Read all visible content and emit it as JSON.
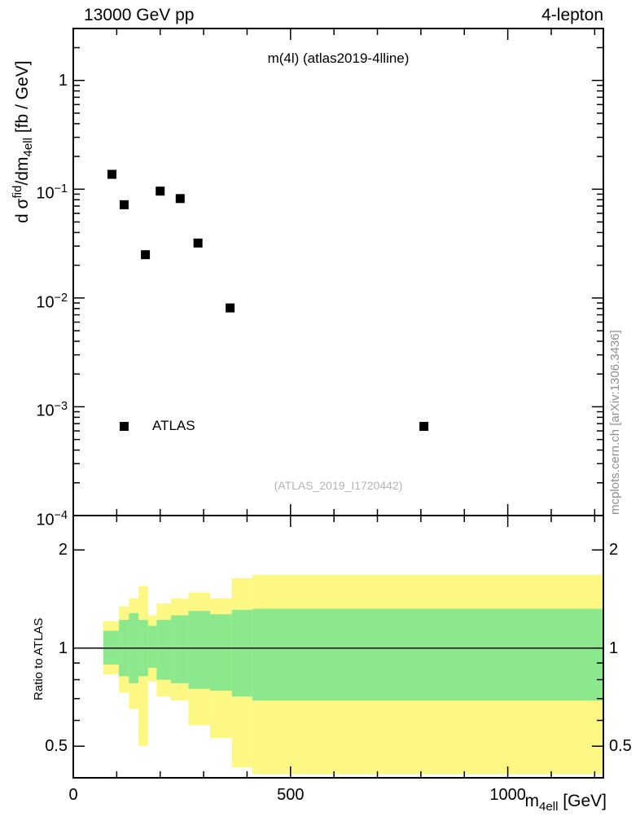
{
  "header": {
    "left": "13000 GeV pp",
    "right": "4-lepton"
  },
  "side_note": "mcplots.cern.ch [arXiv:1306.3436]",
  "axes": {
    "y_main_label": {
      "pre": "d σ",
      "sup": "fid",
      "mid": "/dm",
      "sub": "4ell",
      "post": " [fb / GeV]"
    },
    "y_ratio_label": "Ratio to ATLAS",
    "x_label": {
      "pre": "m",
      "sub": "4ell",
      "post": " [GeV]"
    }
  },
  "chart_data": {
    "type": "scatter",
    "title": "m(4l) (atlas2019-4lline)",
    "xlabel": "m_4ell [GeV]",
    "ylabel": "d σ^fid/dm_4ell [fb / GeV]",
    "legend_label": "ATLAS",
    "watermark": "(ATLAS_2019_I1720442)",
    "x_range": [
      0,
      1220
    ],
    "x_major_ticks": [
      0,
      500,
      1000
    ],
    "x_minor_step": 100,
    "main_panel": {
      "y_scale": "log",
      "y_range": [
        0.0001,
        3.0
      ],
      "y_major_ticks": [
        {
          "value": 1,
          "base": "1",
          "exp": ""
        },
        {
          "value": 0.1,
          "base": "10",
          "exp": "−1"
        },
        {
          "value": 0.01,
          "base": "10",
          "exp": "−2"
        },
        {
          "value": 0.001,
          "base": "10",
          "exp": "−3"
        },
        {
          "value": 0.0001,
          "base": "10",
          "exp": "−4"
        }
      ],
      "points": [
        {
          "x": 89,
          "y": 0.137
        },
        {
          "x": 117,
          "y": 0.072
        },
        {
          "x": 166,
          "y": 0.025
        },
        {
          "x": 200,
          "y": 0.096
        },
        {
          "x": 246,
          "y": 0.082
        },
        {
          "x": 287,
          "y": 0.032
        },
        {
          "x": 361,
          "y": 0.0081
        },
        {
          "x": 807,
          "y": 0.00066
        }
      ],
      "legend_marker": {
        "x": 117,
        "y": 0.00066
      }
    },
    "ratio_panel": {
      "y_scale": "log",
      "y_range": [
        0.4,
        2.55
      ],
      "reference_line": 1.0,
      "y_major_ticks": [
        {
          "value": 0.5,
          "label": "0.5"
        },
        {
          "value": 1,
          "label": "1"
        },
        {
          "value": 2,
          "label": "2"
        }
      ],
      "y_minor_ticks": [
        0.6,
        0.7,
        0.8,
        0.9
      ],
      "bands": [
        {
          "x0": 69,
          "x1": 105,
          "green": [
            0.89,
            1.13
          ],
          "yellow": [
            0.83,
            1.21
          ]
        },
        {
          "x0": 105,
          "x1": 128,
          "green": [
            0.82,
            1.22
          ],
          "yellow": [
            0.73,
            1.34
          ]
        },
        {
          "x0": 128,
          "x1": 150,
          "green": [
            0.78,
            1.28
          ],
          "yellow": [
            0.65,
            1.42
          ]
        },
        {
          "x0": 150,
          "x1": 172,
          "green": [
            0.82,
            1.22
          ],
          "yellow": [
            0.5,
            1.55
          ]
        },
        {
          "x0": 172,
          "x1": 192,
          "green": [
            0.87,
            1.17
          ],
          "yellow": [
            0.79,
            1.26
          ]
        },
        {
          "x0": 192,
          "x1": 225,
          "green": [
            0.8,
            1.22
          ],
          "yellow": [
            0.71,
            1.37
          ]
        },
        {
          "x0": 225,
          "x1": 265,
          "green": [
            0.78,
            1.26
          ],
          "yellow": [
            0.69,
            1.42
          ]
        },
        {
          "x0": 265,
          "x1": 315,
          "green": [
            0.75,
            1.3
          ],
          "yellow": [
            0.58,
            1.48
          ]
        },
        {
          "x0": 315,
          "x1": 365,
          "green": [
            0.74,
            1.27
          ],
          "yellow": [
            0.53,
            1.42
          ]
        },
        {
          "x0": 365,
          "x1": 412,
          "green": [
            0.71,
            1.31
          ],
          "yellow": [
            0.43,
            1.64
          ]
        },
        {
          "x0": 412,
          "x1": 1220,
          "green": [
            0.69,
            1.32
          ],
          "yellow": [
            0.41,
            1.68
          ]
        }
      ]
    },
    "colors": {
      "yellow": "#fcf883",
      "green": "#8ce88c",
      "marker": "#000000"
    }
  }
}
